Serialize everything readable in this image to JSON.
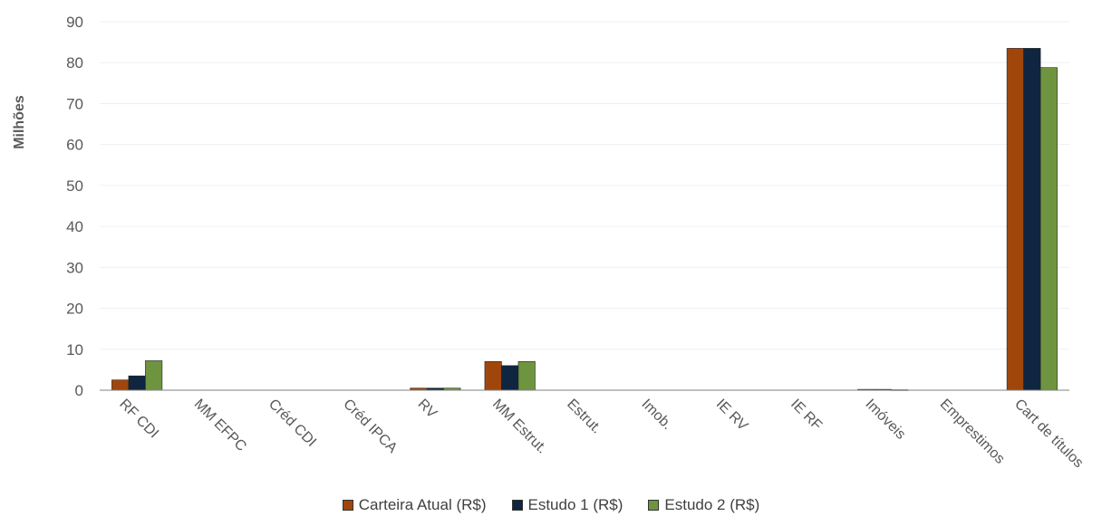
{
  "chart_data": {
    "type": "bar",
    "ylabel": "Milhões",
    "xlabel": "",
    "ylim": [
      0,
      90
    ],
    "yticks": [
      0,
      10,
      20,
      30,
      40,
      50,
      60,
      70,
      80,
      90
    ],
    "grid": true,
    "legend_position": "bottom",
    "categories": [
      "RF CDI",
      "MM EFPC",
      "Créd CDI",
      "Créd IPCA",
      "RV",
      "MM Estrut.",
      "Estrut.",
      "Imob.",
      "IE RV",
      "IE RF",
      "Imóveis",
      "Emprestimos",
      "Cart de títulos"
    ],
    "series": [
      {
        "name": "Carteira Atual (R$)",
        "color": "#a0460d",
        "values": [
          2.5,
          0,
          0,
          0,
          0.5,
          7.0,
          0,
          0,
          0,
          0,
          0.2,
          0,
          83.5
        ]
      },
      {
        "name": "Estudo 1 (R$)",
        "color": "#0f2540",
        "values": [
          3.5,
          0,
          0,
          0,
          0.5,
          6.0,
          0,
          0,
          0,
          0,
          0.2,
          0,
          83.5
        ]
      },
      {
        "name": "Estudo 2 (R$)",
        "color": "#6f9440",
        "values": [
          7.2,
          0,
          0,
          0,
          0.5,
          7.0,
          0,
          0,
          0,
          0,
          0.1,
          0,
          78.8
        ]
      }
    ]
  }
}
